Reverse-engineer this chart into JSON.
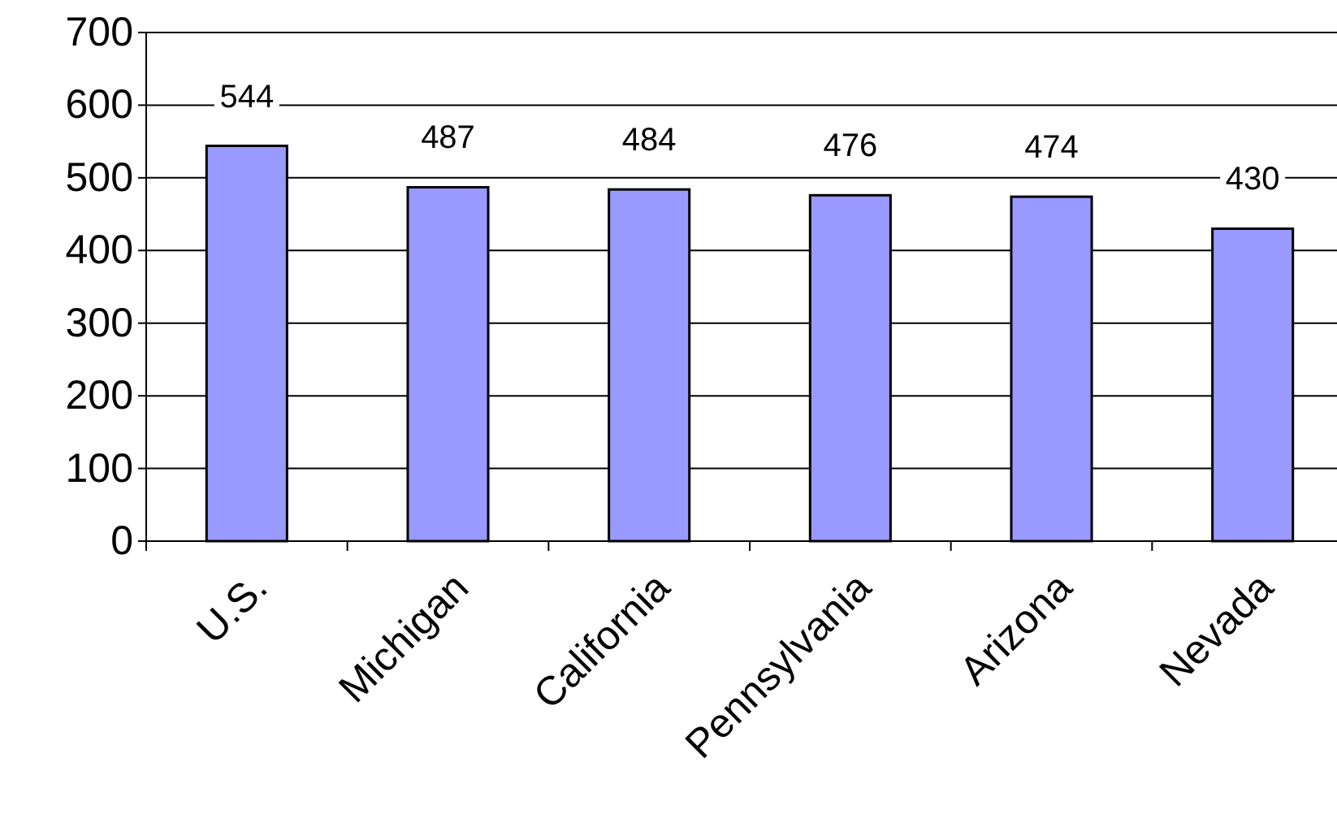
{
  "chart_data": {
    "type": "bar",
    "categories": [
      "U.S.",
      "Michigan",
      "California",
      "Pennsylvania",
      "Arizona",
      "Nevada"
    ],
    "values": [
      544,
      487,
      484,
      476,
      474,
      430
    ],
    "color": "#9999ff",
    "ylim": [
      0,
      700
    ],
    "yticks": [
      0,
      100,
      200,
      300,
      400,
      500,
      600,
      700
    ],
    "grid": "y",
    "data_labels": true
  }
}
